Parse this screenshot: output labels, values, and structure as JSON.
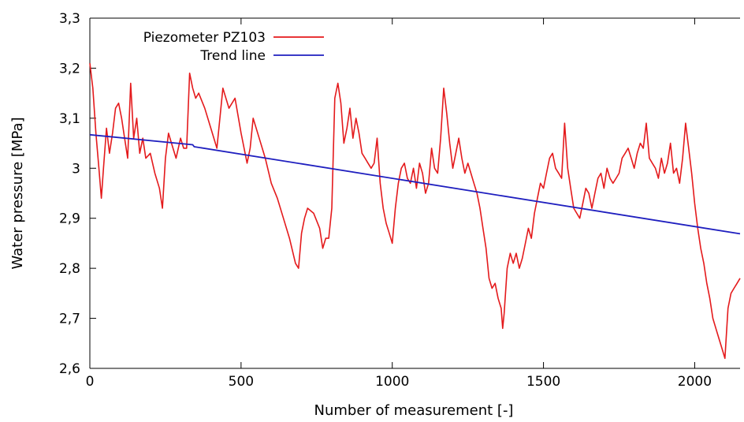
{
  "chart_data": {
    "type": "line",
    "title": "",
    "xlabel": "Number of measurement [-]",
    "ylabel": "Water pressure [MPa]",
    "xlim": [
      0,
      2150
    ],
    "ylim": [
      2.6,
      3.3
    ],
    "x_ticks": [
      0,
      500,
      1000,
      1500,
      2000
    ],
    "x_tick_labels": [
      "0",
      "500",
      "1000",
      "1500",
      "2000"
    ],
    "y_ticks": [
      2.6,
      2.7,
      2.8,
      2.9,
      3.0,
      3.1,
      3.2,
      3.3
    ],
    "y_tick_labels": [
      "2,6",
      "2,7",
      "2,8",
      "2,9",
      "3",
      "3,1",
      "3,2",
      "3,3"
    ],
    "grid": false,
    "legend_position": "top-left",
    "series": [
      {
        "name": "Piezometer PZ103",
        "color": "#e41a1c",
        "x": [
          0,
          10,
          20,
          30,
          38,
          45,
          55,
          65,
          75,
          85,
          95,
          105,
          115,
          125,
          135,
          145,
          155,
          165,
          175,
          185,
          200,
          215,
          230,
          240,
          250,
          260,
          270,
          285,
          300,
          310,
          320,
          330,
          340,
          350,
          360,
          380,
          400,
          420,
          440,
          460,
          480,
          500,
          520,
          530,
          540,
          560,
          580,
          600,
          620,
          640,
          660,
          680,
          690,
          700,
          710,
          720,
          740,
          760,
          770,
          780,
          790,
          800,
          810,
          820,
          830,
          840,
          850,
          860,
          870,
          880,
          890,
          900,
          910,
          920,
          930,
          940,
          950,
          960,
          970,
          980,
          990,
          1000,
          1010,
          1020,
          1030,
          1040,
          1050,
          1060,
          1070,
          1080,
          1090,
          1100,
          1110,
          1120,
          1130,
          1140,
          1150,
          1160,
          1170,
          1180,
          1190,
          1200,
          1210,
          1220,
          1230,
          1240,
          1250,
          1260,
          1270,
          1280,
          1290,
          1300,
          1310,
          1320,
          1330,
          1340,
          1350,
          1360,
          1365,
          1370,
          1380,
          1390,
          1400,
          1410,
          1420,
          1430,
          1440,
          1450,
          1460,
          1470,
          1480,
          1490,
          1500,
          1510,
          1520,
          1530,
          1540,
          1550,
          1560,
          1570,
          1580,
          1590,
          1600,
          1610,
          1620,
          1630,
          1640,
          1650,
          1660,
          1670,
          1680,
          1690,
          1700,
          1710,
          1720,
          1730,
          1740,
          1750,
          1760,
          1770,
          1780,
          1790,
          1800,
          1810,
          1820,
          1830,
          1840,
          1850,
          1860,
          1870,
          1880,
          1890,
          1900,
          1910,
          1920,
          1930,
          1940,
          1950,
          1960,
          1970,
          1980,
          1990,
          2000,
          2010,
          2020,
          2030,
          2040,
          2050,
          2060,
          2070,
          2080,
          2090,
          2100,
          2110,
          2120,
          2130,
          2140,
          2150
        ],
        "values": [
          3.21,
          3.16,
          3.07,
          3.0,
          2.94,
          3.0,
          3.08,
          3.03,
          3.07,
          3.12,
          3.13,
          3.1,
          3.06,
          3.02,
          3.17,
          3.06,
          3.1,
          3.03,
          3.06,
          3.02,
          3.03,
          2.99,
          2.96,
          2.92,
          3.02,
          3.07,
          3.05,
          3.02,
          3.06,
          3.04,
          3.04,
          3.19,
          3.16,
          3.14,
          3.15,
          3.12,
          3.08,
          3.04,
          3.16,
          3.12,
          3.14,
          3.07,
          3.01,
          3.04,
          3.1,
          3.06,
          3.02,
          2.97,
          2.94,
          2.9,
          2.86,
          2.81,
          2.8,
          2.87,
          2.9,
          2.92,
          2.91,
          2.88,
          2.84,
          2.86,
          2.86,
          2.92,
          3.14,
          3.17,
          3.13,
          3.05,
          3.08,
          3.12,
          3.06,
          3.1,
          3.07,
          3.03,
          3.02,
          3.01,
          3.0,
          3.01,
          3.06,
          2.97,
          2.92,
          2.89,
          2.87,
          2.85,
          2.92,
          2.97,
          3.0,
          3.01,
          2.98,
          2.97,
          3.0,
          2.96,
          3.01,
          2.99,
          2.95,
          2.97,
          3.04,
          3.0,
          2.99,
          3.06,
          3.16,
          3.11,
          3.05,
          3.0,
          3.03,
          3.06,
          3.02,
          2.99,
          3.01,
          2.99,
          2.97,
          2.95,
          2.92,
          2.88,
          2.84,
          2.78,
          2.76,
          2.77,
          2.74,
          2.72,
          2.68,
          2.71,
          2.8,
          2.83,
          2.81,
          2.83,
          2.8,
          2.82,
          2.85,
          2.88,
          2.86,
          2.91,
          2.94,
          2.97,
          2.96,
          2.99,
          3.02,
          3.03,
          3.0,
          2.99,
          2.98,
          3.09,
          3.0,
          2.96,
          2.92,
          2.91,
          2.9,
          2.93,
          2.96,
          2.95,
          2.92,
          2.95,
          2.98,
          2.99,
          2.96,
          3.0,
          2.98,
          2.97,
          2.98,
          2.99,
          3.02,
          3.03,
          3.04,
          3.02,
          3.0,
          3.03,
          3.05,
          3.04,
          3.09,
          3.02,
          3.01,
          3.0,
          2.98,
          3.02,
          2.99,
          3.01,
          3.05,
          2.99,
          3.0,
          2.97,
          3.02,
          3.09,
          3.04,
          2.99,
          2.93,
          2.88,
          2.84,
          2.81,
          2.77,
          2.74,
          2.7,
          2.68,
          2.66,
          2.64,
          2.62,
          2.72,
          2.75,
          2.76,
          2.77,
          2.78
        ]
      },
      {
        "name": "Trend line",
        "color": "#1f1fbf",
        "x": [
          0,
          340,
          345,
          2150
        ],
        "values": [
          3.067,
          3.047,
          3.043,
          2.869
        ]
      }
    ]
  }
}
